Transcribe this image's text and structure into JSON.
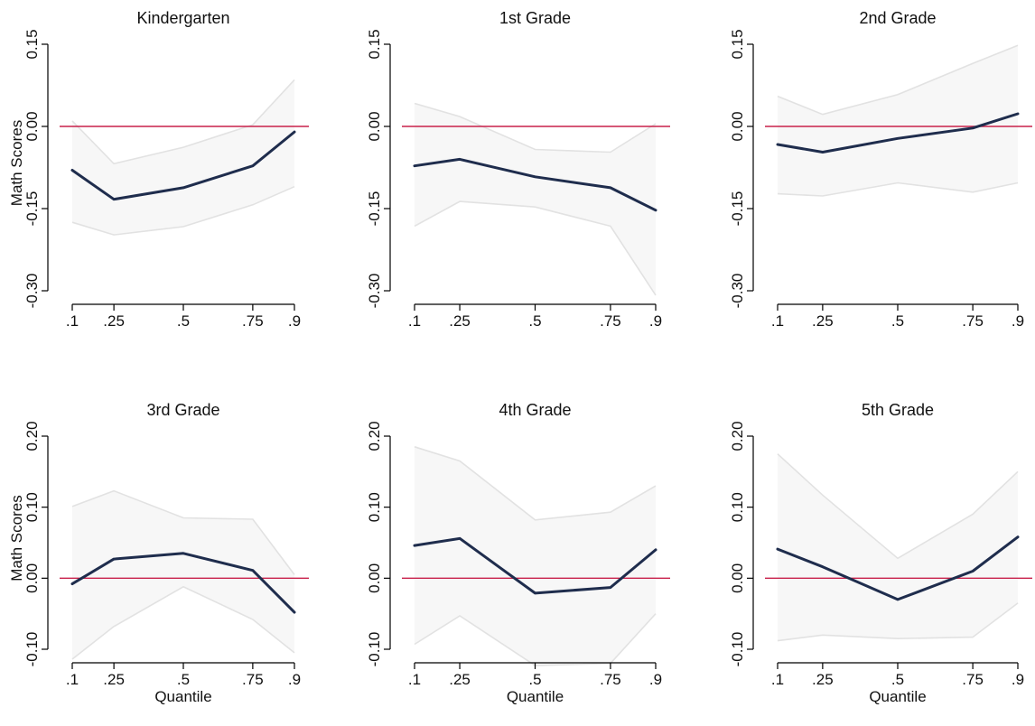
{
  "colors": {
    "line": "#1f2d4d",
    "band_fill": "#f7f7f7",
    "band_edge": "#e2e2e2",
    "zero_line": "#c8204a",
    "axis": "#000000"
  },
  "x_axis_label": "Quantile",
  "y_axis_label": "Math Scores",
  "chart_data": [
    {
      "type": "line",
      "title": "Kindergarten",
      "x": [
        0.1,
        0.25,
        0.5,
        0.75,
        0.9
      ],
      "x_tick_labels": [
        ".1",
        ".25",
        ".5",
        ".75",
        ".9"
      ],
      "y_ticks": [
        0.15,
        0.0,
        -0.15,
        -0.3
      ],
      "y_tick_labels": [
        "0.15",
        "0.00",
        "-0.15",
        "-0.30"
      ],
      "ylim": [
        -0.3,
        0.15
      ],
      "ylabel": "Math Scores",
      "xlabel": "",
      "series": [
        {
          "values": [
            -0.08,
            -0.133,
            -0.112,
            -0.072,
            -0.01
          ]
        }
      ],
      "ci_upper": [
        0.01,
        -0.068,
        -0.038,
        0.003,
        0.085
      ],
      "ci_lower": [
        -0.175,
        -0.198,
        -0.183,
        -0.143,
        -0.11
      ],
      "reference_line": 0.0
    },
    {
      "type": "line",
      "title": "1st Grade",
      "x": [
        0.1,
        0.25,
        0.5,
        0.75,
        0.9
      ],
      "x_tick_labels": [
        ".1",
        ".25",
        ".5",
        ".75",
        ".9"
      ],
      "y_ticks": [
        0.15,
        0.0,
        -0.15,
        -0.3
      ],
      "y_tick_labels": [
        "0.15",
        "0.00",
        "-0.15",
        "-0.30"
      ],
      "ylim": [
        -0.3,
        0.15
      ],
      "ylabel": "",
      "xlabel": "",
      "series": [
        {
          "values": [
            -0.072,
            -0.06,
            -0.092,
            -0.112,
            -0.153
          ]
        }
      ],
      "ci_upper": [
        0.042,
        0.018,
        -0.042,
        -0.047,
        0.005
      ],
      "ci_lower": [
        -0.182,
        -0.137,
        -0.147,
        -0.182,
        -0.308
      ],
      "reference_line": 0.0
    },
    {
      "type": "line",
      "title": "2nd Grade",
      "x": [
        0.1,
        0.25,
        0.5,
        0.75,
        0.9
      ],
      "x_tick_labels": [
        ".1",
        ".25",
        ".5",
        ".75",
        ".9"
      ],
      "y_ticks": [
        0.15,
        0.0,
        -0.15,
        -0.3
      ],
      "y_tick_labels": [
        "0.15",
        "0.00",
        "-0.15",
        "-0.30"
      ],
      "ylim": [
        -0.3,
        0.15
      ],
      "ylabel": "",
      "xlabel": "",
      "series": [
        {
          "values": [
            -0.033,
            -0.047,
            -0.022,
            -0.003,
            0.023
          ]
        }
      ],
      "ci_upper": [
        0.055,
        0.022,
        0.058,
        0.115,
        0.148
      ],
      "ci_lower": [
        -0.123,
        -0.127,
        -0.103,
        -0.12,
        -0.103
      ],
      "reference_line": 0.0
    },
    {
      "type": "line",
      "title": "3rd Grade",
      "x": [
        0.1,
        0.25,
        0.5,
        0.75,
        0.9
      ],
      "x_tick_labels": [
        ".1",
        ".25",
        ".5",
        ".75",
        ".9"
      ],
      "y_ticks": [
        0.2,
        0.1,
        0.0,
        -0.1
      ],
      "y_tick_labels": [
        "0.20",
        "0.10",
        "0.00",
        "-0.10"
      ],
      "ylim": [
        -0.1,
        0.2
      ],
      "ylabel": "Math Scores",
      "xlabel": "Quantile",
      "series": [
        {
          "values": [
            -0.008,
            0.027,
            0.035,
            0.011,
            -0.048
          ]
        }
      ],
      "ci_upper": [
        0.101,
        0.123,
        0.085,
        0.083,
        0.005
      ],
      "ci_lower": [
        -0.114,
        -0.068,
        -0.012,
        -0.058,
        -0.105
      ],
      "reference_line": 0.0
    },
    {
      "type": "line",
      "title": "4th Grade",
      "x": [
        0.1,
        0.25,
        0.5,
        0.75,
        0.9
      ],
      "x_tick_labels": [
        ".1",
        ".25",
        ".5",
        ".75",
        ".9"
      ],
      "y_ticks": [
        0.2,
        0.1,
        0.0,
        -0.1
      ],
      "y_tick_labels": [
        "0.20",
        "0.10",
        "0.00",
        "-0.10"
      ],
      "ylim": [
        -0.1,
        0.2
      ],
      "ylabel": "",
      "xlabel": "Quantile",
      "series": [
        {
          "values": [
            0.046,
            0.056,
            -0.021,
            -0.013,
            0.04
          ]
        }
      ],
      "ci_upper": [
        0.185,
        0.165,
        0.082,
        0.093,
        0.13
      ],
      "ci_lower": [
        -0.093,
        -0.053,
        -0.123,
        -0.12,
        -0.05
      ],
      "reference_line": 0.0
    },
    {
      "type": "line",
      "title": "5th Grade",
      "x": [
        0.1,
        0.25,
        0.5,
        0.75,
        0.9
      ],
      "x_tick_labels": [
        ".1",
        ".25",
        ".5",
        ".75",
        ".9"
      ],
      "y_ticks": [
        0.2,
        0.1,
        0.0,
        -0.1
      ],
      "y_tick_labels": [
        "0.20",
        "0.10",
        "0.00",
        "-0.10"
      ],
      "ylim": [
        -0.1,
        0.2
      ],
      "ylabel": "",
      "xlabel": "Quantile",
      "series": [
        {
          "values": [
            0.041,
            0.016,
            -0.03,
            0.01,
            0.058
          ]
        }
      ],
      "ci_upper": [
        0.175,
        0.117,
        0.028,
        0.09,
        0.15
      ],
      "ci_lower": [
        -0.088,
        -0.08,
        -0.085,
        -0.083,
        -0.035
      ],
      "reference_line": 0.0
    }
  ]
}
